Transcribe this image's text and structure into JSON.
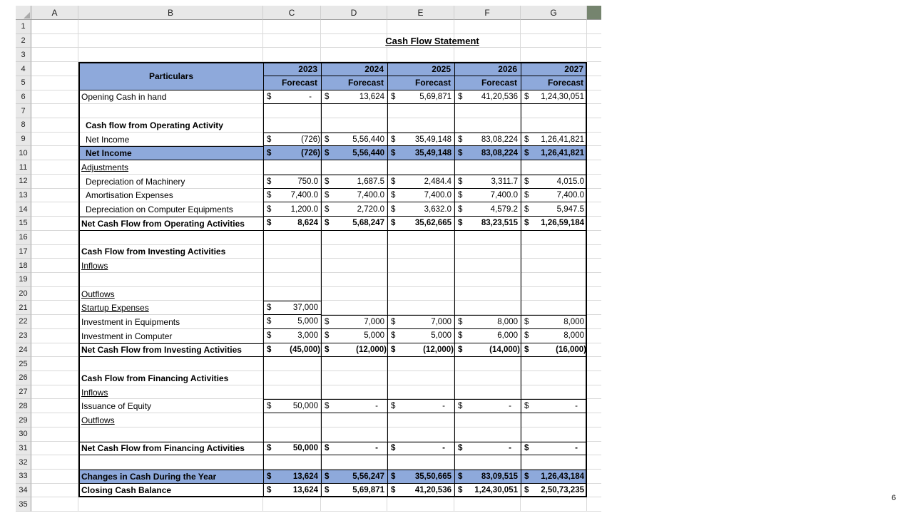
{
  "page": {
    "page_number": "6"
  },
  "title": "Cash Flow Statement",
  "sheet": {
    "column_headers": [
      "A",
      "B",
      "C",
      "D",
      "E",
      "F",
      "G"
    ],
    "row_count": 35,
    "colors": {
      "header_fill": "#8EA9DB",
      "highlight_fill": "#8EA9DB",
      "gridline": "#D9D9D9",
      "header_bg": "#E8E8E8",
      "stub_fill": "#75846E",
      "border": "#000000"
    }
  },
  "table": {
    "currency": "$",
    "particulars_label": "Particulars",
    "years": [
      "2023",
      "2024",
      "2025",
      "2026",
      "2027"
    ],
    "forecast_labels": [
      "Forecast",
      "Forecast",
      "Forecast",
      "Forecast",
      "Forecast"
    ],
    "rows": [
      {
        "r": 6,
        "label": "Opening Cash in hand",
        "values": [
          "-",
          "13,624",
          "5,69,871",
          "41,20,536",
          "1,24,30,051"
        ],
        "bordered": true
      },
      {
        "r": 7,
        "label": "",
        "values": [
          "",
          "",
          "",
          "",
          ""
        ]
      },
      {
        "r": 8,
        "label": "Cash flow from Operating Activity",
        "bold": true,
        "indent": 1,
        "values": [
          "",
          "",
          "",
          "",
          ""
        ]
      },
      {
        "r": 9,
        "label": "Net Income",
        "indent": 1,
        "values": [
          "(726)",
          "5,56,440",
          "35,49,148",
          "83,08,224",
          "1,26,41,821"
        ],
        "bordered": true
      },
      {
        "r": 10,
        "label": "Net Income",
        "bold": true,
        "highlight": true,
        "indent": 1,
        "label_border": true,
        "values": [
          "(726)",
          "5,56,440",
          "35,49,148",
          "83,08,224",
          "1,26,41,821"
        ],
        "bordered": true
      },
      {
        "r": 11,
        "label": "Adjustments",
        "underline": true,
        "values": [
          "",
          "",
          "",
          "",
          ""
        ]
      },
      {
        "r": 12,
        "label": "Depreciation of Machinery",
        "indent": 1,
        "values": [
          "750.0",
          "1,687.5",
          "2,484.4",
          "3,311.7",
          "4,015.0"
        ],
        "bordered": true
      },
      {
        "r": 13,
        "label": "Amortisation Expenses",
        "indent": 1,
        "values": [
          "7,400.0",
          "7,400.0",
          "7,400.0",
          "7,400.0",
          "7,400.0"
        ],
        "bordered": true
      },
      {
        "r": 14,
        "label": "Depreciation on Computer Equipments",
        "indent": 1,
        "values": [
          "1,200.0",
          "2,720.0",
          "3,632.0",
          "4,579.2",
          "5,947.5"
        ],
        "bordered": true
      },
      {
        "r": 15,
        "label": "Net Cash Flow from Operating Activities",
        "bold": true,
        "label_border": true,
        "values": [
          "8,624",
          "5,68,247",
          "35,62,665",
          "83,23,515",
          "1,26,59,184"
        ],
        "bordered": true
      },
      {
        "r": 16,
        "label": "",
        "values": [
          "",
          "",
          "",
          "",
          ""
        ]
      },
      {
        "r": 17,
        "label": "Cash Flow from Investing Activities",
        "bold": true,
        "values": [
          "",
          "",
          "",
          "",
          ""
        ]
      },
      {
        "r": 18,
        "label": "Inflows",
        "underline": true,
        "values": [
          "",
          "",
          "",
          "",
          ""
        ]
      },
      {
        "r": 19,
        "label": "",
        "values": [
          "",
          "",
          "",
          "",
          ""
        ]
      },
      {
        "r": 20,
        "label": "Outflows",
        "underline": true,
        "values": [
          "",
          "",
          "",
          "",
          ""
        ]
      },
      {
        "r": 21,
        "label": "Startup Expenses",
        "underline": true,
        "values": [
          "37,000",
          "",
          "",
          "",
          ""
        ],
        "bordered": true
      },
      {
        "r": 22,
        "label": "Investment in Equipments",
        "values": [
          "5,000",
          "7,000",
          "7,000",
          "8,000",
          "8,000"
        ],
        "bordered": true
      },
      {
        "r": 23,
        "label": "Investment in Computer",
        "values": [
          "3,000",
          "5,000",
          "5,000",
          "6,000",
          "8,000"
        ],
        "bordered": true
      },
      {
        "r": 24,
        "label": "Net Cash Flow from Investing Activities",
        "bold": true,
        "label_border": true,
        "values": [
          "(45,000)",
          "(12,000)",
          "(12,000)",
          "(14,000)",
          "(16,000)"
        ],
        "bordered": true
      },
      {
        "r": 25,
        "label": "",
        "values": [
          "",
          "",
          "",
          "",
          ""
        ]
      },
      {
        "r": 26,
        "label": "Cash Flow from Financing Activities",
        "bold": true,
        "values": [
          "",
          "",
          "",
          "",
          ""
        ]
      },
      {
        "r": 27,
        "label": "Inflows",
        "underline": true,
        "values": [
          "",
          "",
          "",
          "",
          ""
        ]
      },
      {
        "r": 28,
        "label": "Issuance of Equity",
        "values": [
          "50,000",
          "-",
          "-",
          "-",
          "-"
        ],
        "bordered": true
      },
      {
        "r": 29,
        "label": "Outflows",
        "underline": true,
        "values": [
          "",
          "",
          "",
          "",
          ""
        ]
      },
      {
        "r": 30,
        "label": "",
        "values": [
          "",
          "",
          "",
          "",
          ""
        ]
      },
      {
        "r": 31,
        "label": "Net Cash Flow from Financing Activities",
        "bold": true,
        "label_border": true,
        "values": [
          "50,000",
          "-",
          "-",
          "-",
          "-"
        ],
        "bordered": true
      },
      {
        "r": 32,
        "label": "",
        "values": [
          "",
          "",
          "",
          "",
          ""
        ]
      },
      {
        "r": 33,
        "label": "Changes in Cash During the Year",
        "bold": true,
        "highlight": true,
        "label_border": true,
        "values": [
          "13,624",
          "5,56,247",
          "35,50,665",
          "83,09,515",
          "1,26,43,184"
        ],
        "bordered": true
      },
      {
        "r": 34,
        "label": "Closing Cash Balance",
        "bold": true,
        "label_border": true,
        "values": [
          "13,624",
          "5,69,871",
          "41,20,536",
          "1,24,30,051",
          "2,50,73,235"
        ],
        "bordered": true
      }
    ]
  }
}
